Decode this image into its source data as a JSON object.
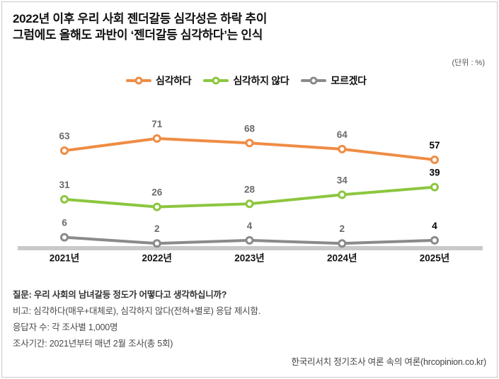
{
  "header": {
    "title_line1": "2022년 이후 우리 사회 젠더갈등 심각성은 하락 추이",
    "title_line2": "그럼에도 올해도 과반이 ‘젠더갈등 심각하다’는 인식",
    "unit_label": "(단위 : %)"
  },
  "legend": [
    {
      "label": "심각하다",
      "color": "#EF8C44"
    },
    {
      "label": "심각하지 않다",
      "color": "#8CC63F"
    },
    {
      "label": "모르겠다",
      "color": "#8A8A8A"
    }
  ],
  "chart_data": {
    "type": "line",
    "categories": [
      "2021년",
      "2022년",
      "2023년",
      "2024년",
      "2025년"
    ],
    "series": [
      {
        "name": "심각하다",
        "color": "#EF8C44",
        "values": [
          63,
          71,
          68,
          64,
          57
        ]
      },
      {
        "name": "심각하지 않다",
        "color": "#8CC63F",
        "values": [
          31,
          26,
          28,
          34,
          39
        ]
      },
      {
        "name": "모르겠다",
        "color": "#8A8A8A",
        "values": [
          6,
          2,
          4,
          2,
          4
        ]
      }
    ],
    "unit": "%",
    "ylim": [
      0,
      100
    ],
    "grid": false,
    "legend_position": "top",
    "value_labels": true,
    "label_color_past": "#6B6B6B",
    "label_color_latest": "#000000",
    "baseline_color": "#C9C9C9"
  },
  "footer": {
    "line1": "질문: 우리 사회의 남녀갈등 정도가 어떻다고 생각하십니까?",
    "line2": "비고: 심각하다(매우+대체로), 심각하지 않다(전혀+별로) 응답 제시함.",
    "line3": "응답자 수: 각 조사별 1,000명",
    "line4": "조사기간: 2021년부터 매년 2월 조사(총 5회)",
    "source": "한국리서치 정기조사 여론 속의 여론(hrcopinion.co.kr)"
  }
}
